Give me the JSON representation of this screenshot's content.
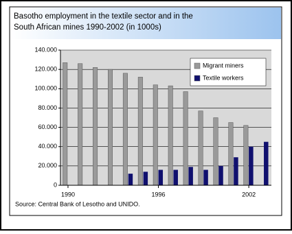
{
  "chart_data": {
    "type": "bar",
    "title": [
      "Basotho employment in the textile sector and in the",
      "South African mines 1990-2002 (in 1000s)"
    ],
    "categories": [
      "1990",
      null,
      null,
      null,
      null,
      null,
      "1996",
      null,
      null,
      null,
      null,
      null,
      "2002",
      null
    ],
    "series": [
      {
        "name": "Migrant miners",
        "color": "#9a9a9a",
        "values": [
          127000,
          126000,
          122000,
          120000,
          116000,
          112000,
          104000,
          103000,
          97000,
          77000,
          70000,
          65000,
          62000,
          null
        ]
      },
      {
        "name": "Textile workers",
        "color": "#10106e",
        "values": [
          null,
          null,
          null,
          null,
          12000,
          14000,
          16000,
          16000,
          19000,
          16000,
          20000,
          29000,
          40000,
          45000
        ]
      }
    ],
    "ylim": [
      0,
      140000
    ],
    "yticks": [
      0,
      {
        "value": 20000,
        "label": "20.000"
      },
      {
        "value": 40000,
        "label": "40.000"
      },
      {
        "value": 60000,
        "label": "60.000"
      },
      {
        "value": 80000,
        "label": "80.000"
      },
      {
        "value": 100000,
        "label": "100.000"
      },
      {
        "value": 120000,
        "label": "120.000"
      },
      {
        "value": 140000,
        "label": "140.000"
      }
    ],
    "grid": true,
    "legend": "top-right",
    "source": "Source: Central Bank of Lesotho and UNIDO."
  }
}
